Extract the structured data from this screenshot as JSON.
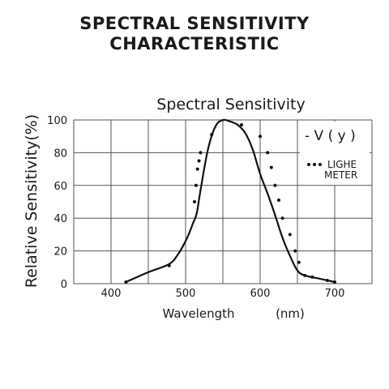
{
  "heading": {
    "line1": "SPECTRAL SENSITIVITY",
    "line2": "CHARACTERISTIC"
  },
  "chart_data": {
    "type": "line",
    "title": "Spectral Sensitivity",
    "xlabel": "Wavelength",
    "xunit": "(nm)",
    "ylabel": "Relative Sensitivity(%)",
    "xlim": [
      350,
      750
    ],
    "ylim": [
      0,
      100
    ],
    "xticks": [
      400,
      500,
      600,
      700
    ],
    "yticks": [
      0,
      20,
      40,
      60,
      80,
      100
    ],
    "grid": true,
    "legend": "top-right",
    "series": [
      {
        "name": "- V ( y )",
        "style": "solid",
        "x": [
          420,
          450,
          478,
          490,
          500,
          505,
          510,
          515,
          520,
          530,
          540,
          550,
          560,
          570,
          580,
          590,
          600,
          610,
          620,
          630,
          640,
          650,
          660,
          680,
          700
        ],
        "y": [
          1,
          7,
          12,
          18,
          26,
          31,
          37,
          43,
          57,
          82,
          96,
          100,
          99,
          97,
          92,
          82,
          67,
          55,
          42,
          28,
          17,
          8,
          5,
          3,
          1
        ]
      },
      {
        "name": "LIGHE METER",
        "style": "dotted",
        "x": [
          420,
          478,
          512,
          514,
          516,
          518,
          520,
          535,
          575,
          600,
          610,
          615,
          620,
          625,
          630,
          640,
          647,
          652,
          660,
          670,
          690,
          700
        ],
        "y": [
          1,
          11,
          50,
          60,
          70,
          75,
          80,
          91,
          97,
          90,
          80,
          71,
          60,
          51,
          40,
          30,
          20,
          13,
          5,
          4,
          2,
          1
        ]
      }
    ]
  }
}
